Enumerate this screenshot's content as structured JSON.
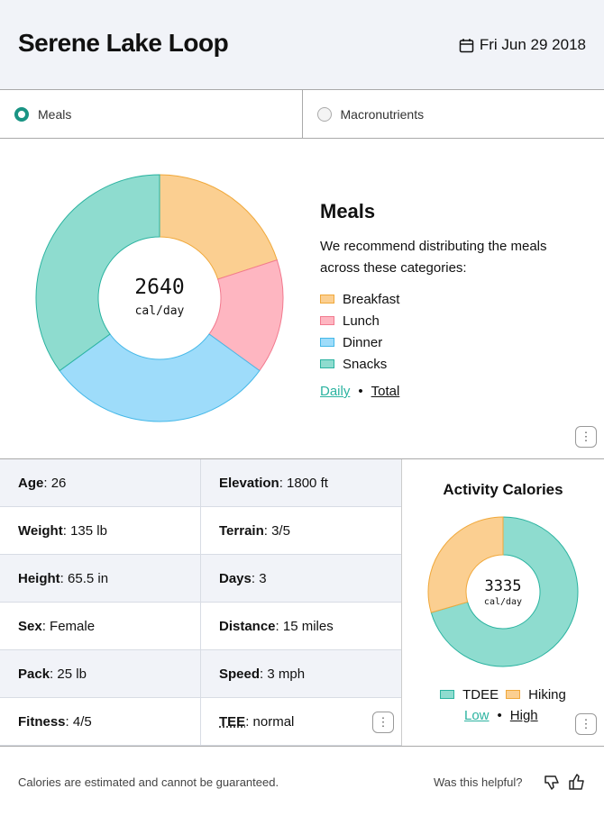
{
  "header": {
    "title": "Serene Lake Loop",
    "date": "Fri Jun 29 2018"
  },
  "tabs": [
    {
      "label": "Meals",
      "selected": true
    },
    {
      "label": "Macronutrients",
      "selected": false
    }
  ],
  "meals": {
    "heading": "Meals",
    "description": "We recommend distributing the meals across these categories:",
    "total": "2640",
    "unit": "cal/day",
    "links": [
      "Daily",
      "Total"
    ],
    "chart_data": {
      "type": "pie",
      "categories": [
        "Breakfast",
        "Lunch",
        "Dinner",
        "Snacks"
      ],
      "values": [
        20,
        15,
        30,
        35
      ],
      "colors": [
        "#fbcf91",
        "#feb6c1",
        "#9edcfa",
        "#8edccf"
      ],
      "strokes": [
        "#f0a83a",
        "#f27a8f",
        "#45b8e8",
        "#2bb3a0"
      ]
    }
  },
  "stats": [
    [
      {
        "label": "Age",
        "value": "26"
      },
      {
        "label": "Elevation",
        "value": "1800 ft"
      }
    ],
    [
      {
        "label": "Weight",
        "value": "135 lb"
      },
      {
        "label": "Terrain",
        "value": "3/5"
      }
    ],
    [
      {
        "label": "Height",
        "value": "65.5 in"
      },
      {
        "label": "Days",
        "value": "3"
      }
    ],
    [
      {
        "label": "Sex",
        "value": "Female"
      },
      {
        "label": "Distance",
        "value": "15 miles"
      }
    ],
    [
      {
        "label": "Pack",
        "value": "25 lb"
      },
      {
        "label": "Speed",
        "value": "3 mph"
      }
    ],
    [
      {
        "label": "Fitness",
        "value": "4/5"
      },
      {
        "label": "TEE",
        "value": "normal"
      }
    ]
  ],
  "activity": {
    "heading": "Activity Calories",
    "total": "3335",
    "unit": "cal/day",
    "links": [
      "Low",
      "High"
    ],
    "chart_data": {
      "type": "pie",
      "categories": [
        "TDEE",
        "Hiking"
      ],
      "values": [
        70.5,
        29.5
      ],
      "colors": [
        "#8edccf",
        "#fbcf91"
      ],
      "strokes": [
        "#2bb3a0",
        "#f0a83a"
      ]
    }
  },
  "footer": {
    "disclaimer": "Calories are estimated and cannot be guaranteed.",
    "helpful": "Was this helpful?"
  },
  "kebab": "⋮"
}
